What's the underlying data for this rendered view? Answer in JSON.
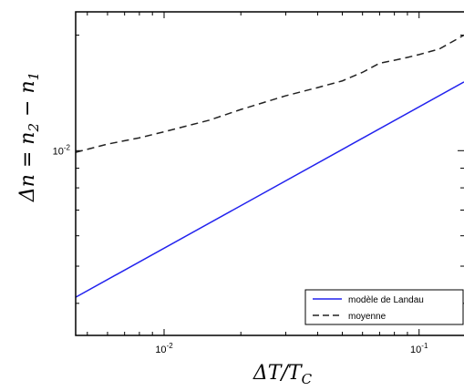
{
  "chart_data": {
    "type": "line",
    "xscale": "log",
    "yscale": "log",
    "xlim": [
      0.0045,
      0.15
    ],
    "ylim": [
      0.0033,
      0.023
    ],
    "xlabel": "ΔT/T_C",
    "ylabel": "Δn = n₂ − n₁",
    "x_ticks": [
      {
        "value": 0.01,
        "mantissa": "10",
        "exponent": "-2"
      },
      {
        "value": 0.1,
        "mantissa": "10",
        "exponent": "-1"
      }
    ],
    "y_ticks": [
      {
        "value": 0.01,
        "mantissa": "10",
        "exponent": "-2"
      }
    ],
    "grid": false,
    "legend_position": "bottom-right",
    "series": [
      {
        "name": "modèle de Landau",
        "color": "#2222ee",
        "style": "solid",
        "x": [
          0.0045,
          0.15
        ],
        "y": [
          0.00415,
          0.0151
        ]
      },
      {
        "name": "moyenne",
        "color": "#222222",
        "style": "dashed",
        "x": [
          0.0045,
          0.006,
          0.008,
          0.01,
          0.015,
          0.02,
          0.03,
          0.04,
          0.05,
          0.06,
          0.07,
          0.08,
          0.09,
          0.1,
          0.12,
          0.15
        ],
        "y": [
          0.0099,
          0.0104,
          0.0108,
          0.0112,
          0.012,
          0.0128,
          0.0139,
          0.0146,
          0.0152,
          0.016,
          0.0169,
          0.0172,
          0.0175,
          0.0178,
          0.0184,
          0.02
        ]
      }
    ]
  }
}
